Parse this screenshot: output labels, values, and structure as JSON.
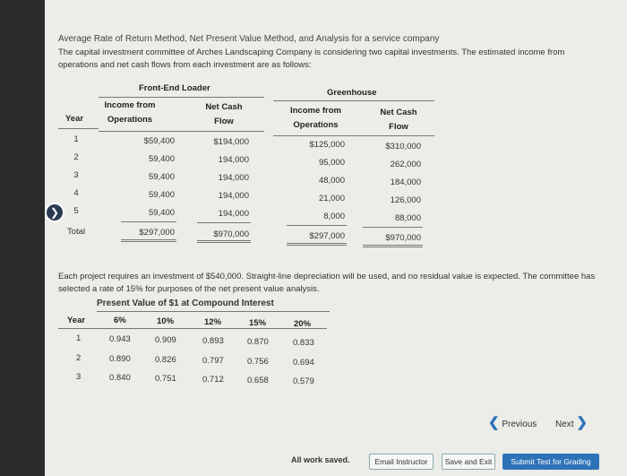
{
  "title": "Average Rate of Return Method, Net Present Value Method, and Analysis for a service company",
  "intro": "The capital investment committee of Arches Landscaping Company is considering two capital investments. The estimated income from operations and net cash flows from each investment are as follows:",
  "table1": {
    "group_frontend": "Front-End Loader",
    "group_greenhouse": "Greenhouse",
    "col_year": "Year",
    "col_income_1": "Income from",
    "col_income_2": "Operations",
    "col_cash_1": "Net Cash",
    "col_cash_2": "Flow",
    "rows": [
      {
        "year": "1",
        "fe_income": "$59,400",
        "fe_cash": "$194,000",
        "gh_income": "$125,000",
        "gh_cash": "$310,000"
      },
      {
        "year": "2",
        "fe_income": "59,400",
        "fe_cash": "194,000",
        "gh_income": "95,000",
        "gh_cash": "262,000"
      },
      {
        "year": "3",
        "fe_income": "59,400",
        "fe_cash": "194,000",
        "gh_income": "48,000",
        "gh_cash": "184,000"
      },
      {
        "year": "4",
        "fe_income": "59,400",
        "fe_cash": "194,000",
        "gh_income": "21,000",
        "gh_cash": "126,000"
      },
      {
        "year": "5",
        "fe_income": "59,400",
        "fe_cash": "194,000",
        "gh_income": "8,000",
        "gh_cash": "88,000"
      }
    ],
    "total": {
      "label": "Total",
      "fe_income": "$297,000",
      "fe_cash": "$970,000",
      "gh_income": "$297,000",
      "gh_cash": "$970,000"
    }
  },
  "middle": "Each project requires an investment of $540,000. Straight-line depreciation will be used, and no residual value is expected. The committee has selected a rate of 15% for purposes of the net present value analysis.",
  "pv": {
    "title": "Present Value of $1 at Compound Interest",
    "headers": [
      "Year",
      "6%",
      "10%",
      "12%",
      "15%",
      "20%"
    ],
    "rows": [
      [
        "1",
        "0.943",
        "0.909",
        "0.893",
        "0.870",
        "0.833"
      ],
      [
        "2",
        "0.890",
        "0.826",
        "0.797",
        "0.756",
        "0.694"
      ],
      [
        "3",
        "0.840",
        "0.751",
        "0.712",
        "0.658",
        "0.579"
      ]
    ]
  },
  "nav": {
    "previous": "Previous",
    "next": "Next"
  },
  "footer": {
    "saved": "All work saved.",
    "email": "Email Instructor",
    "save_exit": "Save and Exit",
    "submit": "Submit Test for Grading"
  },
  "icons": {
    "side_arrow": "chevron-right-icon",
    "prev": "chevron-left-icon",
    "next": "chevron-right-icon"
  },
  "colors": {
    "accent": "#2e73b8",
    "background": "#ecece8"
  }
}
